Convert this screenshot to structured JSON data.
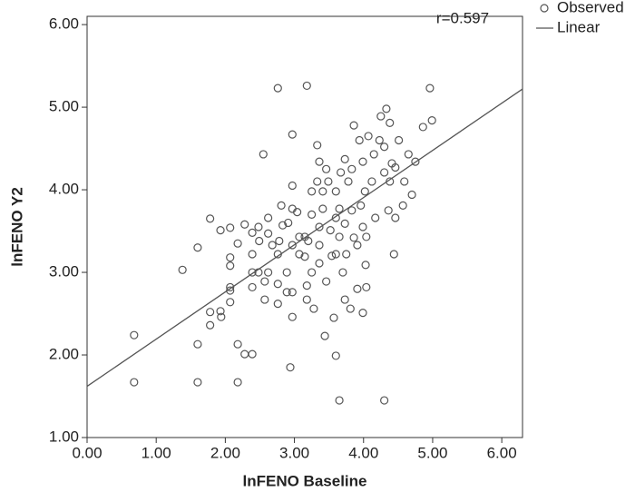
{
  "chart_data": {
    "type": "scatter",
    "x_label": "lnFENO Baseline",
    "y_label": "lnFENO Y2",
    "annotation": "r=0.597",
    "xlim": [
      0,
      6.3
    ],
    "ylim": [
      1,
      6.1
    ],
    "xticks": [
      {
        "value": 0,
        "label": "0.00"
      },
      {
        "value": 1,
        "label": "1.00"
      },
      {
        "value": 2,
        "label": "2.00"
      },
      {
        "value": 3,
        "label": "3.00"
      },
      {
        "value": 4,
        "label": "4.00"
      },
      {
        "value": 5,
        "label": "5.00"
      },
      {
        "value": 6,
        "label": "6.00"
      }
    ],
    "yticks": [
      {
        "value": 1,
        "label": "1.00"
      },
      {
        "value": 2,
        "label": "2.00"
      },
      {
        "value": 3,
        "label": "3.00"
      },
      {
        "value": 4,
        "label": "4.00"
      },
      {
        "value": 5,
        "label": "5.00"
      },
      {
        "value": 6,
        "label": "6.00"
      }
    ],
    "grid": false,
    "legend": "outside-top-right",
    "series": [
      {
        "name": "Observed",
        "type": "scatter",
        "color": "#555555",
        "x": [
          0.68,
          0.68,
          1.38,
          1.6,
          1.6,
          1.6,
          1.78,
          1.78,
          1.78,
          1.93,
          1.93,
          1.94,
          2.07,
          2.07,
          2.07,
          2.07,
          2.07,
          2.07,
          2.18,
          2.18,
          2.18,
          2.28,
          2.28,
          2.39,
          2.39,
          2.39,
          2.39,
          2.39,
          2.48,
          2.48,
          2.55,
          2.57,
          2.57,
          2.62,
          2.62,
          2.62,
          2.68,
          2.76,
          2.76,
          2.76,
          2.76,
          2.81,
          2.83,
          2.89,
          2.89,
          2.91,
          2.94,
          2.97,
          2.97,
          2.97,
          2.97,
          2.97,
          2.97,
          3.04,
          3.07,
          3.07,
          3.15,
          3.15,
          3.18,
          3.18,
          3.18,
          3.25,
          3.25,
          3.25,
          3.28,
          3.33,
          3.33,
          3.36,
          3.36,
          3.36,
          3.36,
          3.41,
          3.41,
          3.44,
          3.46,
          3.49,
          3.52,
          3.54,
          3.57,
          3.6,
          3.6,
          3.6,
          3.6,
          3.65,
          3.65,
          3.65,
          3.67,
          3.7,
          3.73,
          3.73,
          3.73,
          3.75,
          3.78,
          3.81,
          3.83,
          3.83,
          3.86,
          3.91,
          3.91,
          3.94,
          3.96,
          3.99,
          3.99,
          4.02,
          4.03,
          4.04,
          4.04,
          4.07,
          4.12,
          4.15,
          4.17,
          4.23,
          4.25,
          4.3,
          4.3,
          4.3,
          4.33,
          4.36,
          4.38,
          4.38,
          4.41,
          4.44,
          4.46,
          4.51,
          4.59,
          4.65,
          4.7,
          4.86,
          4.96,
          4.99,
          4.75,
          4.57,
          4.46,
          3.86,
          3.46,
          3.2,
          2.78,
          2.49,
          3.99
        ],
        "values": [
          2.24,
          1.67,
          3.03,
          3.3,
          2.13,
          1.67,
          3.65,
          2.52,
          2.36,
          3.51,
          2.53,
          2.46,
          3.54,
          3.18,
          3.08,
          2.82,
          2.78,
          2.64,
          3.35,
          2.13,
          1.67,
          3.58,
          2.01,
          2.01,
          3.48,
          3.22,
          3.0,
          2.82,
          3.55,
          3.0,
          4.43,
          2.67,
          2.89,
          3.66,
          3.0,
          3.47,
          3.33,
          5.23,
          3.22,
          2.86,
          2.62,
          3.81,
          3.57,
          3.0,
          2.76,
          3.6,
          1.85,
          4.67,
          4.05,
          3.77,
          3.33,
          2.76,
          2.46,
          3.73,
          3.43,
          3.22,
          3.43,
          3.19,
          5.26,
          2.84,
          2.67,
          3.98,
          3.7,
          3.0,
          2.56,
          4.54,
          4.1,
          4.34,
          3.55,
          3.33,
          3.11,
          3.98,
          3.77,
          2.23,
          2.89,
          4.1,
          3.51,
          3.2,
          2.45,
          3.98,
          3.66,
          3.22,
          1.99,
          1.45,
          3.43,
          3.77,
          4.21,
          3.0,
          4.37,
          3.59,
          2.67,
          3.22,
          4.1,
          2.56,
          3.75,
          4.25,
          4.78,
          2.8,
          3.33,
          4.6,
          3.81,
          3.55,
          4.34,
          3.98,
          3.09,
          2.82,
          3.43,
          4.65,
          4.1,
          4.43,
          3.66,
          4.6,
          4.89,
          1.45,
          4.52,
          4.21,
          4.98,
          3.75,
          4.1,
          4.81,
          4.32,
          3.22,
          4.27,
          4.6,
          4.1,
          4.43,
          3.94,
          4.76,
          5.23,
          4.84,
          4.34,
          3.81,
          3.66,
          3.42,
          4.25,
          3.38,
          3.38,
          3.38,
          2.51
        ]
      },
      {
        "name": "Linear",
        "type": "line",
        "color": "#555555",
        "x": [
          0,
          6.3
        ],
        "values": [
          1.62,
          5.22
        ]
      }
    ]
  }
}
